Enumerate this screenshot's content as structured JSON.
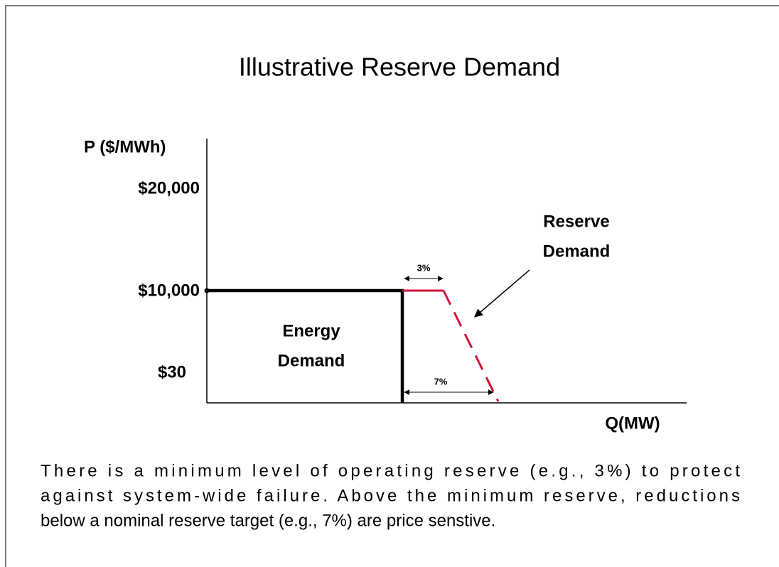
{
  "title": "Illustrative Reserve Demand",
  "y_axis_label": "P ($/MWh)",
  "x_axis_label": "Q(MW)",
  "price_labels": [
    "$20,000",
    "$10,000",
    "$30"
  ],
  "energy_label": [
    "Energy",
    "Demand"
  ],
  "reserve_label": [
    "Reserve",
    "Demand"
  ],
  "annotations": [
    "3%",
    "7%"
  ],
  "body": [
    "There is a minimum level of operating reserve (e.g., 3%) to protect",
    "against system-wide failure. Above the minimum reserve, reductions",
    "below a nominal reserve target (e.g., 7%) are price senstive."
  ]
}
